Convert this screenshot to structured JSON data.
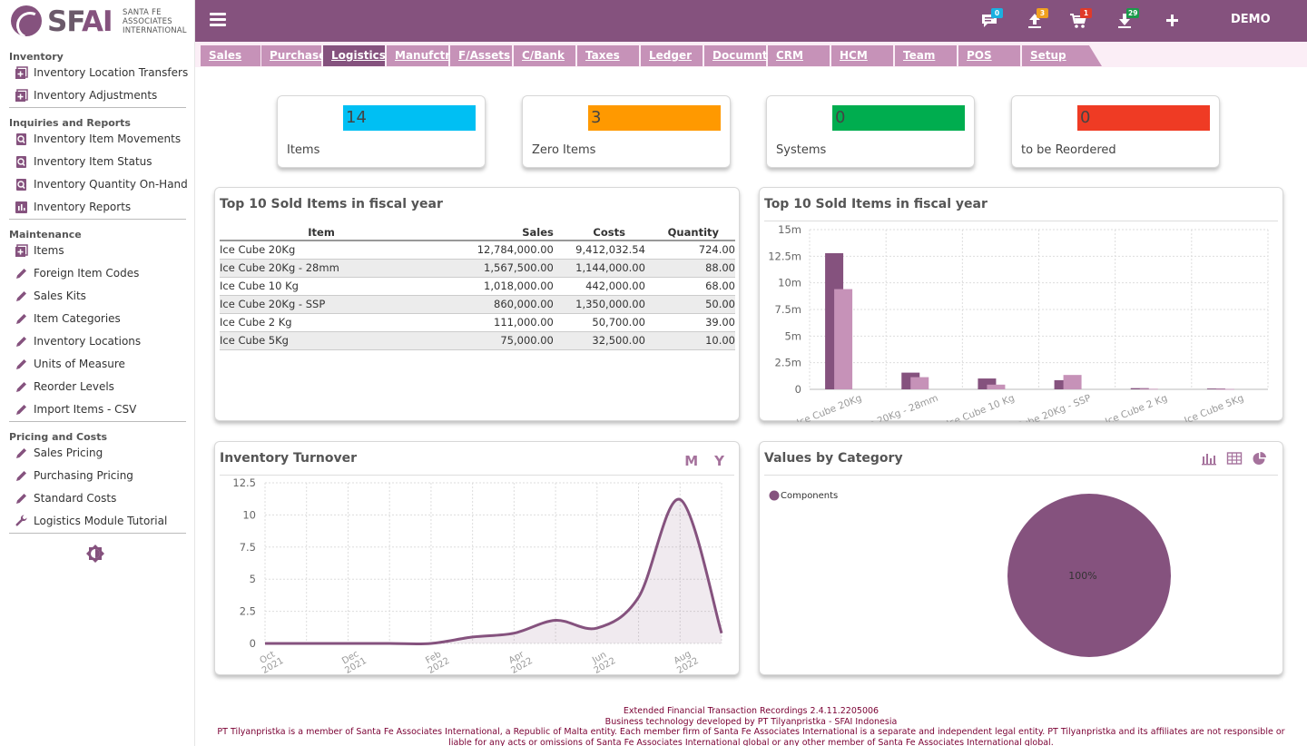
{
  "brand": {
    "word_a": "SF",
    "word_b": "AI",
    "subtitle_lines": [
      "SANTA FE",
      "ASSOCIATES",
      "INTERNATIONAL"
    ]
  },
  "sidebar": {
    "sections": [
      {
        "title": "Inventory",
        "items": [
          {
            "label": "Inventory Location Transfers",
            "icon": "plus-square-icon"
          },
          {
            "label": "Inventory Adjustments",
            "icon": "plus-square-icon"
          }
        ]
      },
      {
        "title": "Inquiries and Reports",
        "items": [
          {
            "label": "Inventory Item Movements",
            "icon": "search-doc-icon"
          },
          {
            "label": "Inventory Item Status",
            "icon": "search-doc-icon"
          },
          {
            "label": "Inventory Quantity On-Hand",
            "icon": "search-doc-icon"
          },
          {
            "label": "Inventory Reports",
            "icon": "report-chart-icon"
          }
        ]
      },
      {
        "title": "Maintenance",
        "items": [
          {
            "label": "Items",
            "icon": "plus-square-icon"
          },
          {
            "label": "Foreign Item Codes",
            "icon": "pencil-icon"
          },
          {
            "label": "Sales Kits",
            "icon": "pencil-icon"
          },
          {
            "label": "Item Categories",
            "icon": "pencil-icon"
          },
          {
            "label": "Inventory Locations",
            "icon": "pencil-icon"
          },
          {
            "label": "Units of Measure",
            "icon": "pencil-icon"
          },
          {
            "label": "Reorder Levels",
            "icon": "pencil-icon"
          },
          {
            "label": "Import Items - CSV",
            "icon": "pencil-icon"
          }
        ]
      },
      {
        "title": "Pricing and Costs",
        "items": [
          {
            "label": "Sales Pricing",
            "icon": "pencil-icon"
          },
          {
            "label": "Purchasing Pricing",
            "icon": "pencil-icon"
          },
          {
            "label": "Standard Costs",
            "icon": "pencil-icon"
          },
          {
            "label": "Logistics Module Tutorial",
            "icon": "wrench-icon"
          }
        ]
      }
    ]
  },
  "topbar": {
    "badges": {
      "messages": "0",
      "upload": "3",
      "cart": "1",
      "download": "29"
    },
    "badge_colors": {
      "messages": "#1ab0e0",
      "upload": "#f0a020",
      "cart": "#e03a2a",
      "download": "#1a9a4a"
    },
    "user": "DEMO"
  },
  "tabs": [
    "Sales",
    "Purchase",
    "Logistics",
    "Manufctr",
    "F/Assets",
    "C/Bank",
    "Taxes",
    "Ledger",
    "Documnt",
    "CRM",
    "HCM",
    "Team",
    "POS",
    "Setup"
  ],
  "active_tab": "Logistics",
  "stats": [
    {
      "value": "14",
      "label": "Items",
      "color": "#00bff3"
    },
    {
      "value": "3",
      "label": "Zero Items",
      "color": "#ff9900"
    },
    {
      "value": "0",
      "label": "Systems",
      "color": "#00ad4f"
    },
    {
      "value": "0",
      "label": "to be Reordered",
      "color": "#ef3b24"
    }
  ],
  "top_sold_table": {
    "title": "Top 10 Sold Items in fiscal year",
    "headers": [
      "Item",
      "Sales",
      "Costs",
      "Quantity"
    ],
    "rows": [
      [
        "Ice Cube 20Kg",
        "12,784,000.00",
        "9,412,032.54",
        "724.00"
      ],
      [
        "Ice Cube 20Kg - 28mm",
        "1,567,500.00",
        "1,144,000.00",
        "88.00"
      ],
      [
        "Ice Cube 10 Kg",
        "1,018,000.00",
        "442,000.00",
        "68.00"
      ],
      [
        "Ice Cube 20Kg - SSP",
        "860,000.00",
        "1,350,000.00",
        "50.00"
      ],
      [
        "Ice Cube 2 Kg",
        "111,000.00",
        "50,700.00",
        "39.00"
      ],
      [
        "Ice Cube 5Kg",
        "75,000.00",
        "32,500.00",
        "10.00"
      ]
    ]
  },
  "top_sold_chart_title": "Top 10 Sold Items in fiscal year",
  "turnover_title": "Inventory Turnover",
  "turnover_buttons": [
    "M",
    "Y"
  ],
  "category_title": "Values by Category",
  "footer": {
    "line1": "Extended Financial Transaction Recordings 2.4.11.2205006",
    "line2": "Business technology developed by PT Tilyanpristka - SFAI Indonesia",
    "line3": "PT Tilyanpristka is a member of Santa Fe Associates International, a Republic of Malta entity. Each member firm of Santa Fe Associates International is a separate and independent legal entity. PT Tilyanpristka and its affiliates are not responsible or",
    "line4": "liable for any acts or omissions of Santa Fe Associates International global or any other member of Santa Fe Associates International global."
  },
  "chart_data": [
    {
      "type": "bar",
      "title": "Top 10 Sold Items in fiscal year",
      "categories": [
        "Ice Cube 20Kg",
        "Ice Cube 20Kg - 28mm",
        "Ice Cube 10 Kg",
        "Ice Cube 20Kg - SSP",
        "Ice Cube 2 Kg",
        "Ice Cube 5Kg"
      ],
      "series": [
        {
          "values": [
            12784000,
            1567500,
            1018000,
            860000,
            111000,
            75000
          ],
          "color": "#85527e"
        },
        {
          "values": [
            9412032.54,
            1144000,
            442000,
            1350000,
            50700,
            32500
          ],
          "color": "#c692b8"
        }
      ],
      "ylim": [
        0,
        15000000
      ],
      "y_ticks": [
        "0",
        "2.5m",
        "5m",
        "7.5m",
        "10m",
        "12.5m",
        "15m"
      ],
      "grid": true,
      "xlabel": "",
      "ylabel": ""
    },
    {
      "type": "area",
      "title": "Inventory Turnover",
      "x": [
        "Oct 2021",
        "Nov 2021",
        "Dec 2021",
        "Jan 2022",
        "Feb 2022",
        "Mar 2022",
        "Apr 2022",
        "May 2022",
        "Jun 2022",
        "Jul 2022",
        "Aug 2022",
        "Sep 2022"
      ],
      "x_tick_labels": [
        "Oct 2021",
        "Dec 2021",
        "Feb 2022",
        "Apr 2022",
        "Jun 2022",
        "Aug 2022"
      ],
      "values": [
        0,
        0,
        0,
        0,
        0,
        0.5,
        0.8,
        1.8,
        1.2,
        3.6,
        11.2,
        0.8
      ],
      "ylim": [
        0,
        12.5
      ],
      "y_ticks": [
        "0",
        "2.5",
        "5",
        "7.5",
        "10",
        "12.5"
      ],
      "grid": true,
      "color": "#85527e",
      "xlabel": "",
      "ylabel": ""
    },
    {
      "type": "pie",
      "title": "Values by Category",
      "labels": [
        "Components"
      ],
      "values": [
        100
      ],
      "slice_labels": [
        "100%"
      ],
      "colors": [
        "#85527e"
      ],
      "legend": "top-left"
    }
  ]
}
